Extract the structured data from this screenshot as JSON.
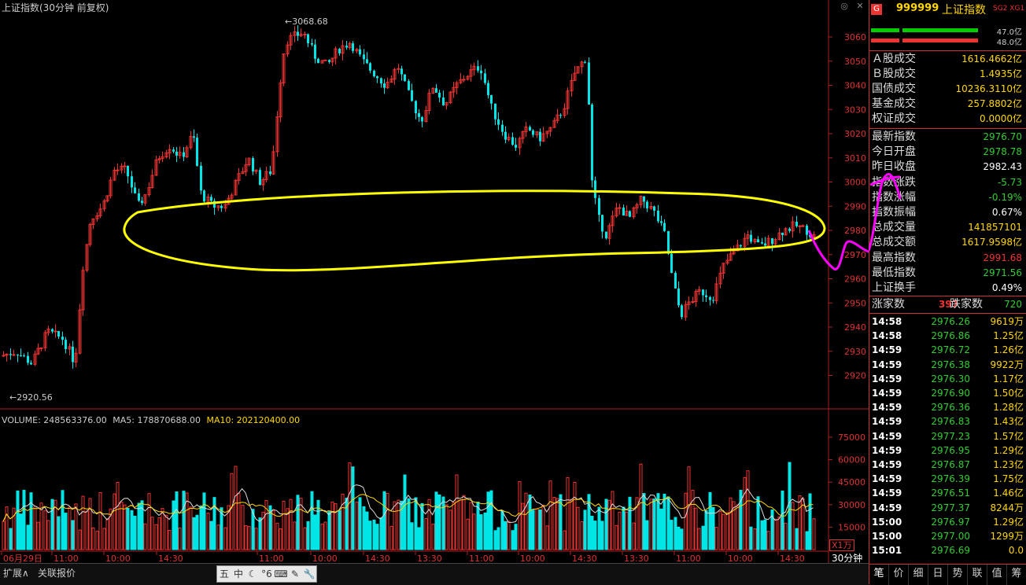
{
  "chart": {
    "title": "上证指数(30分钟 前复权)",
    "high_label": "3068.68",
    "low_label": "2920.56",
    "price_ticks": [
      "3060",
      "3050",
      "3040",
      "3030",
      "3020",
      "3010",
      "3000",
      "2990",
      "2980",
      "2970",
      "2960",
      "2950",
      "2940",
      "2930",
      "2920"
    ],
    "volume_ticks": [
      "75000",
      "60000",
      "45000",
      "30000",
      "15000"
    ],
    "time_ticks": [
      "06月29日",
      "11:00",
      "10:00",
      "14:30",
      "11:00",
      "10:00",
      "14:30",
      "13:30",
      "11:00",
      "10:00",
      "14:30",
      "13:30",
      "11:00",
      "10:00",
      "14:30"
    ],
    "volume_legend": {
      "volume": "VOLUME: 248563376.00",
      "ma5": "MA5: 178870688.00",
      "ma10": "MA10: 202120400.00"
    },
    "period": "30分钟",
    "scale_unit": "X1万",
    "up_color": "#e33",
    "down_color": "#00e5e5",
    "annotation_color_yellow": "#ffff00",
    "annotation_color_magenta": "#ff00ff"
  },
  "bottom_bar": {
    "expand": "扩展∧",
    "related": "关联报价",
    "tools": [
      "五",
      "中",
      "☾",
      "°6",
      "⌨",
      "✎",
      "🔧"
    ]
  },
  "panel": {
    "code": "999999",
    "name": "上证指数",
    "tags": "SG2 XG1",
    "badge": "G",
    "ratio1": "47.0亿",
    "ratio2": "48.0亿",
    "turnover": [
      {
        "k": "Ａ股成交",
        "v": "1616.4662亿"
      },
      {
        "k": "Ｂ股成交",
        "v": "1.4935亿"
      },
      {
        "k": "国债成交",
        "v": "10236.3110亿"
      },
      {
        "k": "基金成交",
        "v": "257.8802亿"
      },
      {
        "k": "权证成交",
        "v": "0.0000亿"
      }
    ],
    "stats": [
      {
        "k": "最新指数",
        "v": "2976.70",
        "c": "#3c3"
      },
      {
        "k": "今日开盘",
        "v": "2978.78",
        "c": "#3c3"
      },
      {
        "k": "昨日收盘",
        "v": "2982.43",
        "c": "#fff"
      },
      {
        "k": "指数涨跌",
        "v": "-5.73",
        "c": "#3c3"
      },
      {
        "k": "指数涨幅",
        "v": "-0.19%",
        "c": "#3c3"
      },
      {
        "k": "指数振幅",
        "v": "0.67%",
        "c": "#fff"
      },
      {
        "k": "总成交量",
        "v": "141857101",
        "c": "#ffd700"
      },
      {
        "k": "总成交额",
        "v": "1617.9598亿",
        "c": "#ffd700"
      },
      {
        "k": "最高指数",
        "v": "2991.68",
        "c": "#e33"
      },
      {
        "k": "最低指数",
        "v": "2971.56",
        "c": "#3c3"
      },
      {
        "k": "上证换手",
        "v": "0.49%",
        "c": "#fff"
      }
    ],
    "breadth": {
      "up_label": "涨家数",
      "up": "397",
      "down_label": "跌家数",
      "down": "720"
    },
    "ticks": [
      {
        "t": "14:58",
        "p": "2976.26",
        "q": "9619万"
      },
      {
        "t": "14:58",
        "p": "2976.86",
        "q": "1.25亿"
      },
      {
        "t": "14:59",
        "p": "2976.72",
        "q": "1.26亿"
      },
      {
        "t": "14:59",
        "p": "2976.38",
        "q": "9922万"
      },
      {
        "t": "14:59",
        "p": "2976.30",
        "q": "1.17亿"
      },
      {
        "t": "14:59",
        "p": "2976.90",
        "q": "1.50亿"
      },
      {
        "t": "14:59",
        "p": "2976.36",
        "q": "1.28亿"
      },
      {
        "t": "14:59",
        "p": "2976.83",
        "q": "1.43亿"
      },
      {
        "t": "14:59",
        "p": "2977.23",
        "q": "1.57亿"
      },
      {
        "t": "14:59",
        "p": "2976.95",
        "q": "1.29亿"
      },
      {
        "t": "14:59",
        "p": "2976.87",
        "q": "1.23亿"
      },
      {
        "t": "14:59",
        "p": "2976.39",
        "q": "1.75亿"
      },
      {
        "t": "14:59",
        "p": "2976.51",
        "q": "1.46亿"
      },
      {
        "t": "14:59",
        "p": "2977.37",
        "q": "8244万"
      },
      {
        "t": "15:00",
        "p": "2976.97",
        "q": "1.29亿"
      },
      {
        "t": "15:00",
        "p": "2977.00",
        "q": "1299万"
      },
      {
        "t": "15:01",
        "p": "2976.69",
        "q": "0.0"
      }
    ],
    "tabs": [
      "笔",
      "价",
      "细",
      "日",
      "势",
      "联",
      "值",
      "筹"
    ]
  }
}
